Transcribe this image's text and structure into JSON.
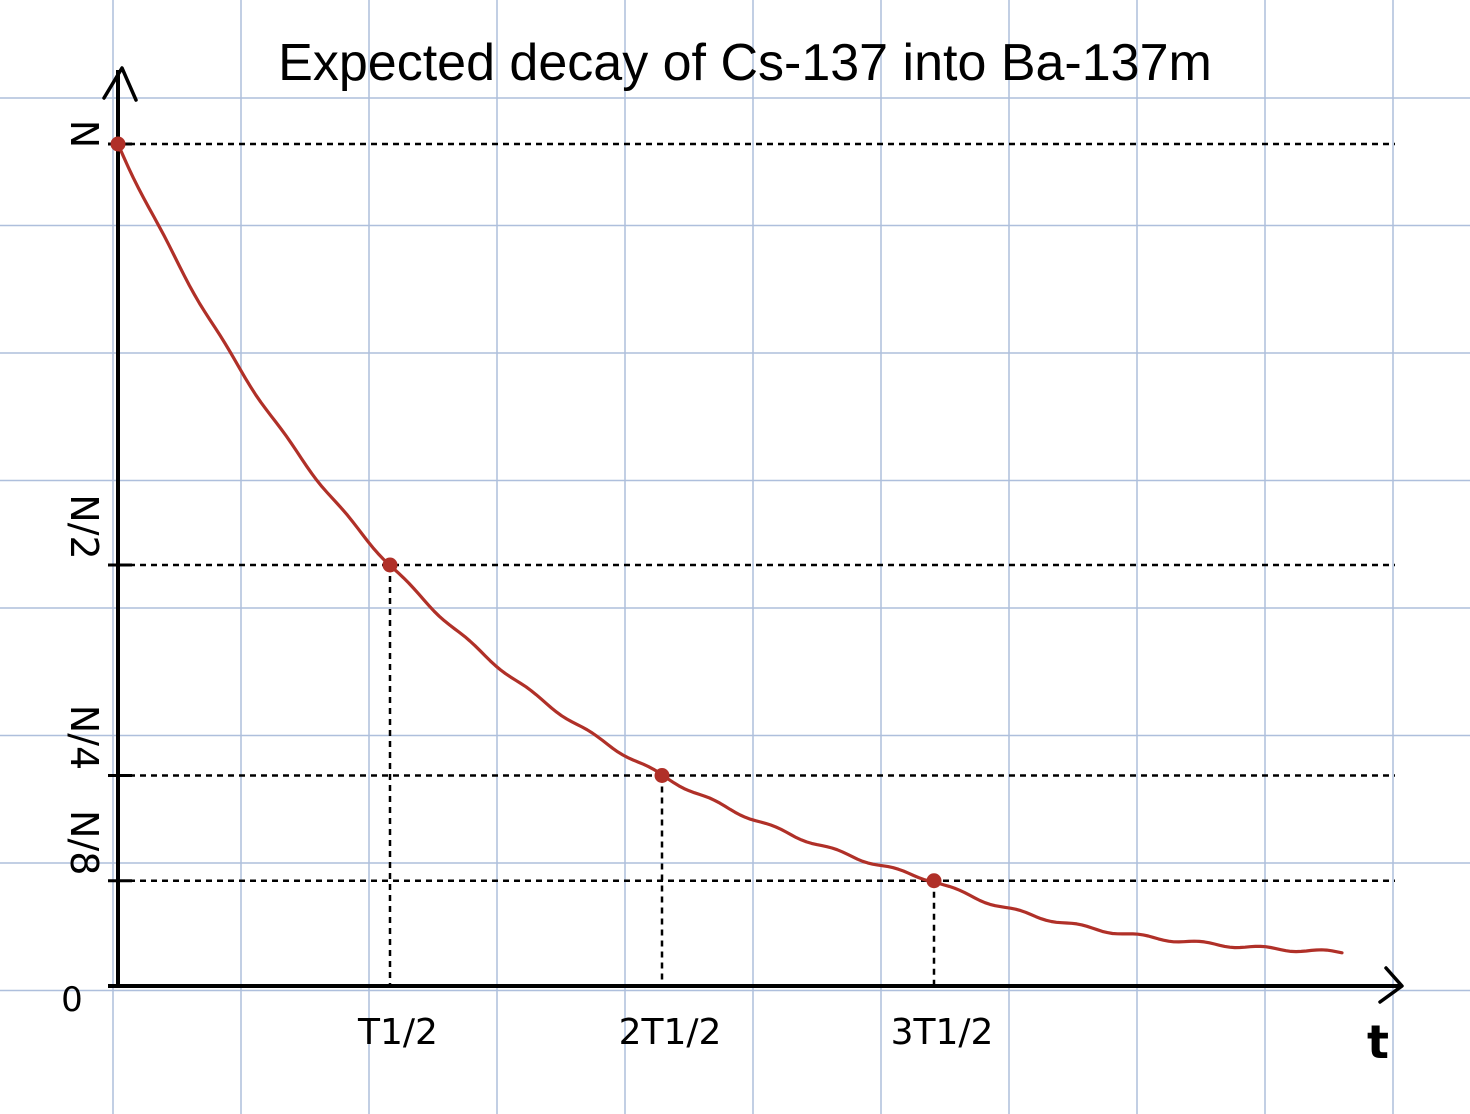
{
  "chart_data": {
    "type": "line",
    "title": "Expected decay of Cs-137 into Ba-137m",
    "xlabel": "t",
    "ylabel": "",
    "x": [
      0,
      1,
      2,
      3,
      4.5
    ],
    "series": [
      {
        "values": [
          1,
          0.5,
          0.25,
          0.125,
          0.04
        ]
      }
    ],
    "marked_points": [
      {
        "x": 0,
        "y": 1
      },
      {
        "x": 1,
        "y": 0.5
      },
      {
        "x": 2,
        "y": 0.25
      },
      {
        "x": 3,
        "y": 0.125
      }
    ],
    "y_ticks": [
      {
        "value": 1,
        "label": "N"
      },
      {
        "value": 0.5,
        "label": "N/2"
      },
      {
        "value": 0.25,
        "label": "N/4"
      },
      {
        "value": 0.125,
        "label": "N/8"
      },
      {
        "value": 0,
        "label": "0"
      }
    ],
    "x_ticks": [
      {
        "value": 1,
        "label": "T1/2"
      },
      {
        "value": 2,
        "label": "2T1/2"
      },
      {
        "value": 3,
        "label": "3T1/2"
      }
    ],
    "xlim": [
      0,
      5
    ],
    "ylim": [
      0,
      1
    ],
    "grid": true,
    "guide_lines": "dashed",
    "colors": {
      "curve": "#b03028",
      "grid": "#aebfdc",
      "axis": "#000000"
    }
  }
}
